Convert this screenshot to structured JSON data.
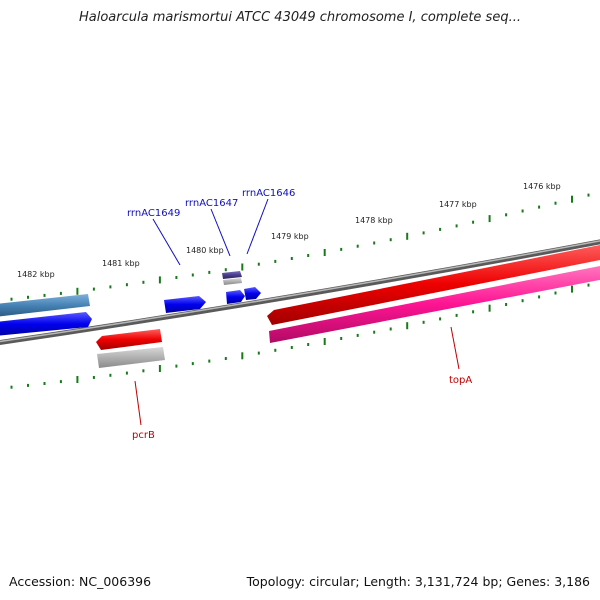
{
  "title": "Haloarcula marismortui ATCC 43049 chromosome I, complete seq...",
  "footer": {
    "accession": "Accession: NC_006396",
    "summary": "Topology: circular; Length: 3,131,724 bp; Genes: 3,186"
  },
  "map": {
    "ticks": [
      {
        "label": "1476 kbp"
      },
      {
        "label": "1477 kbp"
      },
      {
        "label": "1478 kbp"
      },
      {
        "label": "1479 kbp"
      },
      {
        "label": "1480 kbp"
      },
      {
        "label": "1481 kbp"
      },
      {
        "label": "1482 kbp"
      }
    ],
    "labels": [
      {
        "text": "rrnAC1649",
        "color": "#1010c0"
      },
      {
        "text": "rrnAC1647",
        "color": "#1010c0"
      },
      {
        "text": "rrnAC1646",
        "color": "#1010c0"
      },
      {
        "text": "pcrB",
        "color": "#c00000"
      },
      {
        "text": "topA",
        "color": "#c00000"
      }
    ],
    "colors": {
      "backbone": "#808080",
      "forward_cds": "#0000ee",
      "forward_other": "#4682b4",
      "reverse_cds": "#ee0000",
      "reverse_other": "#ff1493",
      "pseudo": "#b0b0b0",
      "rna": "#483d8b",
      "tick": "#1a7a1a"
    }
  }
}
